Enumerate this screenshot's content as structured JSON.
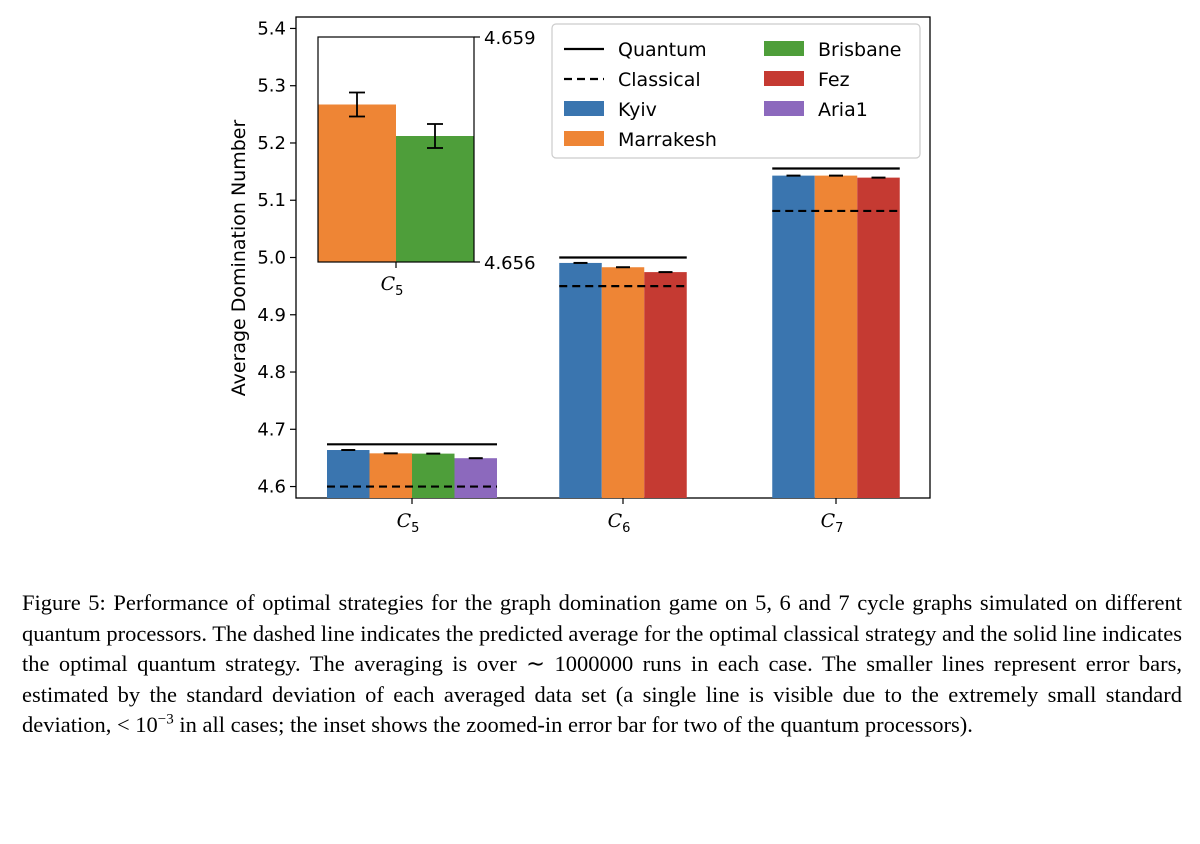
{
  "chart_data": [
    {
      "type": "bar",
      "ylabel": "Average Domination Number",
      "ylim": [
        4.58,
        5.42
      ],
      "yticks": [
        "4.6",
        "4.7",
        "4.8",
        "4.9",
        "5.0",
        "5.1",
        "5.2",
        "5.3",
        "5.4"
      ],
      "categories": [
        {
          "base": "C",
          "sub": "5"
        },
        {
          "base": "C",
          "sub": "6"
        },
        {
          "base": "C",
          "sub": "7"
        }
      ],
      "legend": {
        "placement": "top-right",
        "items": [
          {
            "label": "Quantum",
            "kind": "solid-line"
          },
          {
            "label": "Classical",
            "kind": "dashed-line"
          },
          {
            "label": "Kyiv",
            "kind": "patch",
            "color": "#3a75af"
          },
          {
            "label": "Marrakesh",
            "kind": "patch",
            "color": "#ee8535"
          },
          {
            "label": "Brisbane",
            "kind": "patch",
            "color": "#4e9e3a"
          },
          {
            "label": "Fez",
            "kind": "patch",
            "color": "#c53a32"
          },
          {
            "label": "Aria1",
            "kind": "patch",
            "color": "#8c69bd"
          }
        ]
      },
      "series": [
        {
          "name": "Kyiv",
          "color": "#3a75af",
          "values": [
            4.6638,
            4.9905,
            5.143
          ]
        },
        {
          "name": "Marrakesh",
          "color": "#ee8535",
          "values": [
            4.658,
            4.983,
            5.143
          ]
        },
        {
          "name": "Brisbane",
          "color": "#4e9e3a",
          "values": [
            4.6575,
            null,
            null
          ]
        },
        {
          "name": "Fez",
          "color": "#c53a32",
          "values": [
            null,
            4.9745,
            5.1395
          ]
        },
        {
          "name": "Aria1",
          "color": "#8c69bd",
          "values": [
            4.6495,
            null,
            null
          ]
        }
      ],
      "quantum_line": [
        4.6738,
        5.0,
        5.1554
      ],
      "classical_line": [
        4.6,
        4.95,
        5.0813
      ]
    },
    {
      "type": "bar",
      "inset": true,
      "ylim": [
        4.656,
        4.659
      ],
      "yticks": [
        "4.656",
        "4.659"
      ],
      "categories": [
        {
          "base": "C",
          "sub": "5"
        }
      ],
      "series": [
        {
          "name": "Marrakesh",
          "color": "#ee8535",
          "value": 4.6581,
          "error": 0.00016
        },
        {
          "name": "Brisbane",
          "color": "#4e9e3a",
          "value": 4.65768,
          "error": 0.00016
        }
      ]
    }
  ],
  "caption": {
    "line1": "Figure 5: Performance of optimal strategies for the graph domination game on 5, 6 and 7 cycle",
    "line2": "graphs simulated on different quantum processors. The dashed line indicates the predicted average",
    "line3": "for the optimal classical strategy and the solid line indicates the optimal quantum strategy. The",
    "line4": "averaging is over ∼ 1000000 runs in each case. The smaller lines represent error bars, estimated by",
    "line5": "the standard deviation of each averaged data set (a single line is visible due to the extremely small",
    "line6a": "standard deviation, < 10",
    "line6sup": "−3",
    "line6b": " in all cases; the inset shows the zoomed-in error bar for two of the quantum",
    "line7": "processors)."
  }
}
